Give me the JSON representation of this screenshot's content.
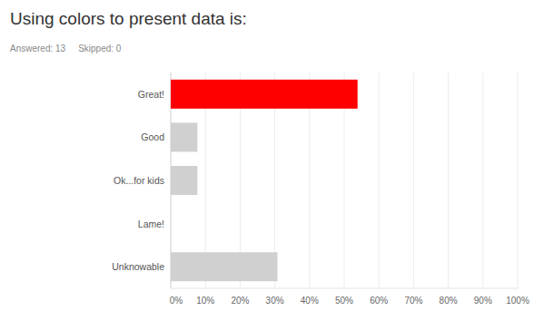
{
  "chart_data": {
    "type": "bar",
    "orientation": "horizontal",
    "title": "Using colors to present data is:",
    "annotations": [
      "Answered: 13",
      "Skipped: 0"
    ],
    "categories": [
      "Great!",
      "Good",
      "Ok...for kids",
      "Lame!",
      "Unknowable"
    ],
    "values": [
      53.85,
      7.69,
      7.69,
      0,
      30.77
    ],
    "colors": [
      "#ff0000",
      "#d0d0d0",
      "#d0d0d0",
      "#d0d0d0",
      "#d0d0d0"
    ],
    "xlim": [
      0,
      100
    ],
    "xticks": [
      {
        "value": 0,
        "label": "0%"
      },
      {
        "value": 10,
        "label": "10%"
      },
      {
        "value": 20,
        "label": "20%"
      },
      {
        "value": 30,
        "label": "30%"
      },
      {
        "value": 40,
        "label": "40%"
      },
      {
        "value": 50,
        "label": "50%"
      },
      {
        "value": 60,
        "label": "60%"
      },
      {
        "value": 70,
        "label": "70%"
      },
      {
        "value": 80,
        "label": "80%"
      },
      {
        "value": 90,
        "label": "90%"
      },
      {
        "value": 100,
        "label": "100%"
      }
    ],
    "grid": true
  }
}
